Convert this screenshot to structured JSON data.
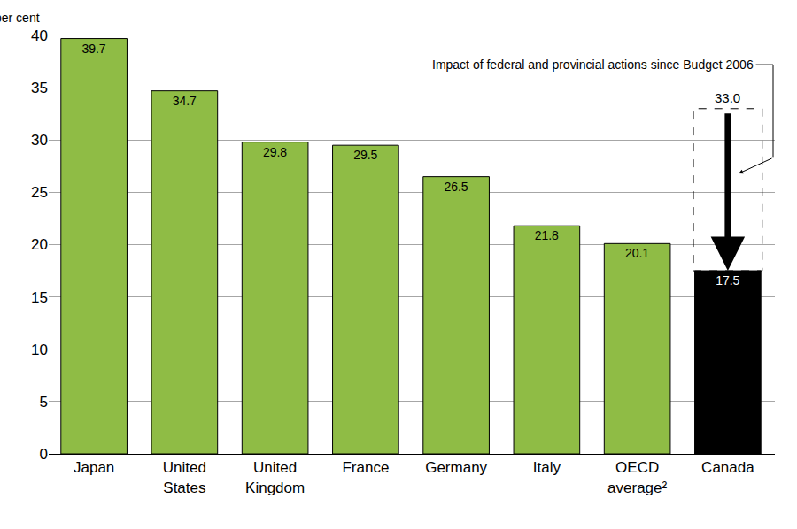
{
  "chart_data": {
    "type": "bar",
    "y_label": "per cent",
    "categories": [
      "Japan",
      "United States",
      "United Kingdom",
      "France",
      "Germany",
      "Italy",
      "OECD average²",
      "Canada"
    ],
    "values": [
      39.7,
      34.7,
      29.8,
      29.5,
      26.5,
      21.8,
      20.1,
      17.5
    ],
    "colors": [
      "#8fbc45",
      "#8fbc45",
      "#8fbc45",
      "#8fbc45",
      "#8fbc45",
      "#8fbc45",
      "#8fbc45",
      "#000000"
    ],
    "ylim": [
      0,
      40
    ],
    "yticks": [
      0,
      5,
      10,
      15,
      20,
      25,
      30,
      35,
      40
    ],
    "grid": true,
    "data_labels": true,
    "annotations": [
      {
        "text": "Impact of federal and provincial actions since Budget 2006",
        "category": "Canada",
        "from": 33.0,
        "from_label": "33.0",
        "to": 17.5
      }
    ]
  }
}
